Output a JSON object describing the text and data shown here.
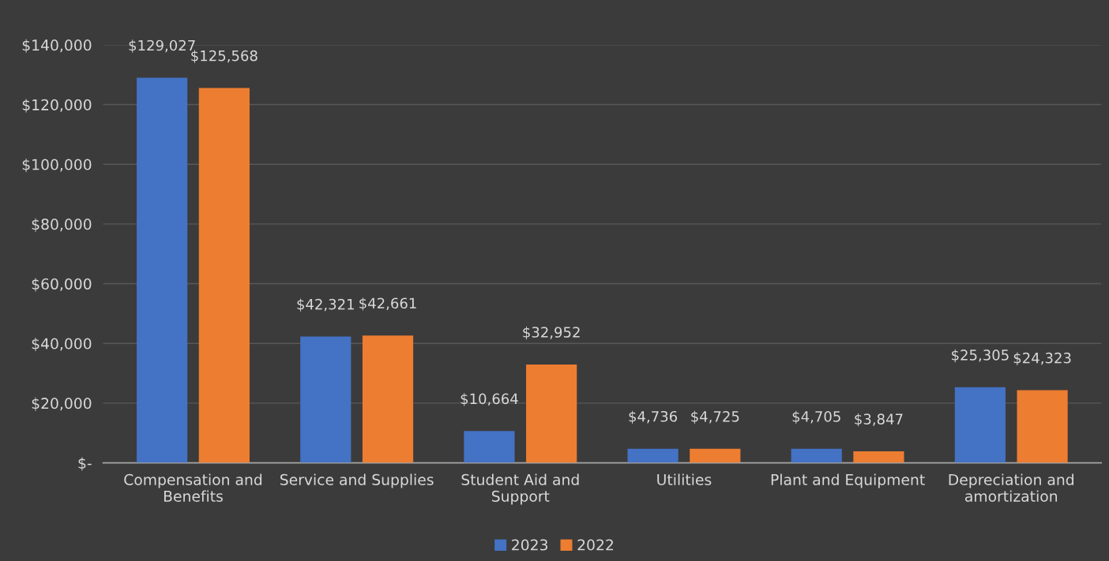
{
  "chart_data": {
    "type": "bar",
    "categories": [
      "Compensation and\nBenefits",
      "Service and Supplies",
      "Student Aid and\nSupport",
      "Utilities",
      "Plant and Equipment",
      "Depreciation and\namortization"
    ],
    "series": [
      {
        "name": "2023",
        "color": "#4472c4",
        "values": [
          129027,
          42321,
          10664,
          4736,
          4705,
          25305
        ],
        "value_labels": [
          "$129,027",
          "$42,321",
          "$10,664",
          "$4,736",
          "$4,705",
          "$25,305"
        ]
      },
      {
        "name": "2022",
        "color": "#ed7d31",
        "values": [
          125568,
          42661,
          32952,
          4725,
          3847,
          24323
        ],
        "value_labels": [
          "$125,568",
          "$42,661",
          "$32,952",
          "$4,725",
          "$3,847",
          "$24,323"
        ]
      }
    ],
    "ylim": [
      0,
      140000
    ],
    "yticks": [
      {
        "value": 0,
        "label": "$-"
      },
      {
        "value": 20000,
        "label": "$20,000"
      },
      {
        "value": 40000,
        "label": "$40,000"
      },
      {
        "value": 60000,
        "label": "$60,000"
      },
      {
        "value": 80000,
        "label": "$80,000"
      },
      {
        "value": 100000,
        "label": "$100,000"
      },
      {
        "value": 120000,
        "label": "$120,000"
      },
      {
        "value": 140000,
        "label": "$140,000"
      }
    ],
    "grid": "y",
    "legend": "bottom"
  }
}
